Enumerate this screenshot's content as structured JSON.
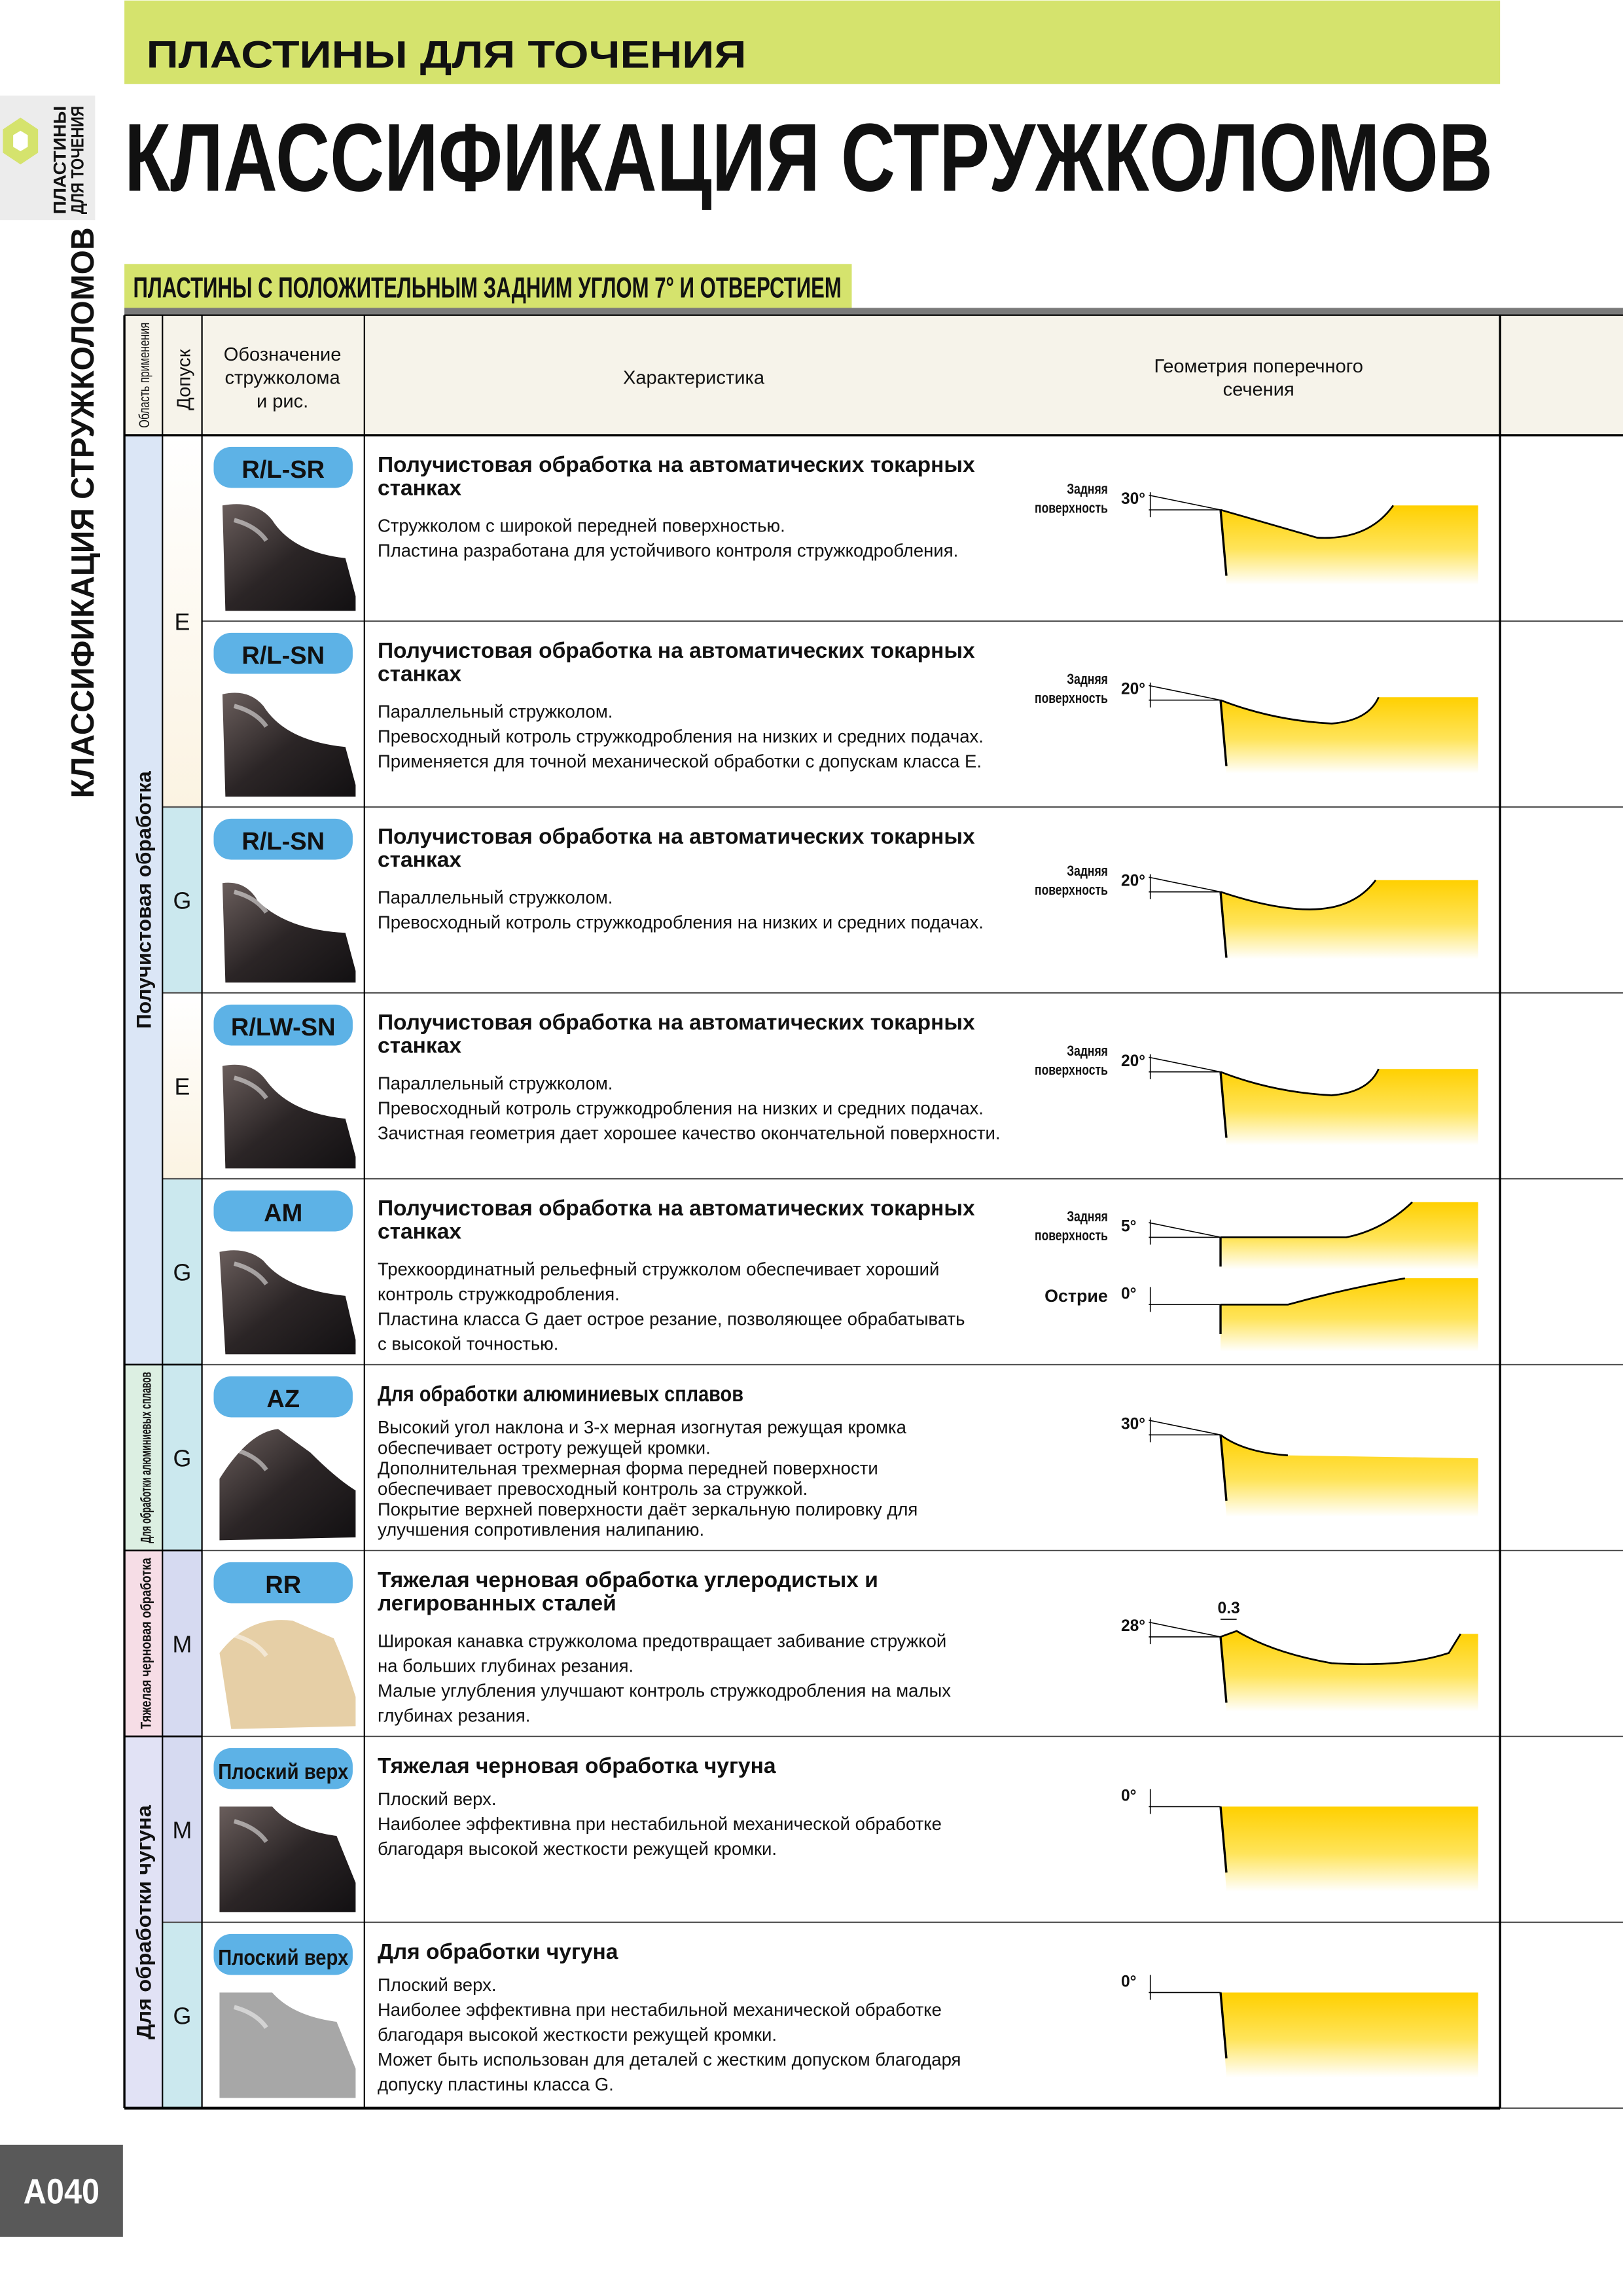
{
  "header": {
    "band": "ПЛАСТИНЫ ДЛЯ ТОЧЕНИЯ",
    "title": "КЛАССИФИКАЦИЯ СТРУЖКОЛОМОВ"
  },
  "side_tab": [
    "ПЛАСТИНЫ",
    "ДЛЯ ТОЧЕНИЯ"
  ],
  "side_title": "КЛАССИФИКАЦИЯ СТРУЖКОЛОМОВ",
  "section": "ПЛАСТИНЫ С ПОЛОЖИТЕЛЬНЫМ ЗАДНИМ УГЛОМ 7° И ОТВЕРСТИЕМ",
  "table": {
    "headers": {
      "area": "Область применения",
      "tolerance": "Допуск",
      "code": [
        "Обозначение",
        "стружколома",
        "и рис."
      ],
      "feature": "Характеристика",
      "geometry": [
        "Геометрия поперечного",
        "сечения"
      ]
    },
    "groups": [
      {
        "label": "Получистовая обработка",
        "tolerances": [
          {
            "label": "E",
            "rows": [
              {
                "code": "R/L-SR",
                "heading": [
                  "Получистовая обработка на автоматических токарных",
                  "станках"
                ],
                "lines": [
                  "Стружколом с широкой передней поверхностью.",
                  "Пластина разработана для устойчивого контроля стружкодробления."
                ],
                "geometry": [
                  {
                    "label": [
                      "Задняя",
                      "поверхность"
                    ],
                    "angle": "30°"
                  }
                ]
              },
              {
                "code": "R/L-SN",
                "heading": [
                  "Получистовая обработка на автоматических токарных",
                  "станках"
                ],
                "lines": [
                  "Параллельный стружколом.",
                  "Превосходный котроль стружкодробления на низких и средних подачах.",
                  "Применяется для точной механической обработки с допускам класса E."
                ],
                "geometry": [
                  {
                    "label": [
                      "Задняя",
                      "поверхность"
                    ],
                    "angle": "20°"
                  }
                ]
              }
            ]
          },
          {
            "label": "G",
            "rows": [
              {
                "code": "R/L-SN",
                "heading": [
                  "Получистовая обработка на автоматических токарных",
                  "станках"
                ],
                "lines": [
                  "Параллельный стружколом.",
                  "Превосходный котроль стружкодробления на низких и средних подачах."
                ],
                "geometry": [
                  {
                    "label": [
                      "Задняя",
                      "поверхность"
                    ],
                    "angle": "20°"
                  }
                ]
              }
            ]
          },
          {
            "label": "E",
            "rows": [
              {
                "code": "R/LW-SN",
                "heading": [
                  "Получистовая обработка на автоматических токарных",
                  "станках"
                ],
                "lines": [
                  "Параллельный стружколом.",
                  "Превосходный котроль стружкодробления на низких и средних подачах.",
                  "Зачистная геометрия дает хорошее качество окончательной поверхности."
                ],
                "geometry": [
                  {
                    "label": [
                      "Задняя",
                      "поверхность"
                    ],
                    "angle": "20°"
                  }
                ]
              }
            ]
          },
          {
            "label": "G",
            "rows": [
              {
                "code": "AM",
                "heading": [
                  "Получистовая обработка на автоматических токарных",
                  "станках"
                ],
                "lines": [
                  "Трехкоординатный рельефный стружколом обеспечивает хороший",
                  "контроль стружкодробления.",
                  "Пластина класса G дает острое резание, позволяющее обрабатывать",
                  "с высокой точностью."
                ],
                "geometry": [
                  {
                    "label": [
                      "Задняя",
                      "поверхность"
                    ],
                    "angle": "5°"
                  },
                  {
                    "label": [
                      "Острие"
                    ],
                    "angle": "0°"
                  }
                ]
              }
            ]
          }
        ]
      },
      {
        "label": "Для обработки алюминиевых сплавов",
        "tolerances": [
          {
            "label": "G",
            "rows": [
              {
                "code": "AZ",
                "heading": [
                  "Для обработки алюминиевых сплавов"
                ],
                "lines": [
                  "Высокий угол наклона и 3-х мерная изогнутая режущая кромка",
                  "обеспечивает остроту режущей кромки.",
                  "Дополнительная трехмерная форма передней поверхности",
                  "обеспечивает превосходный контроль за стружкой.",
                  "Покрытие верхней поверхности даёт зеркальную полировку для",
                  "улучшения сопротивления налипанию."
                ],
                "geometry": [
                  {
                    "angle": "30°"
                  }
                ]
              }
            ]
          }
        ]
      },
      {
        "label": "Тяжелая черновая обработка",
        "tolerances": [
          {
            "label": "M",
            "rows": [
              {
                "code": "RR",
                "heading": [
                  "Тяжелая черновая обработка углеродистых и",
                  "легированных сталей"
                ],
                "lines": [
                  "Широкая канавка стружколома предотвращает забивание стружкой",
                  "на больших глубинах резания.",
                  "Малые углубления улучшают контроль стружкодробления на малых",
                  "глубинах резания."
                ],
                "geometry": [
                  {
                    "angle": "28°",
                    "width": "0.3"
                  }
                ]
              }
            ]
          }
        ]
      },
      {
        "label": "Для обработки чугуна",
        "tolerances": [
          {
            "label": "M",
            "rows": [
              {
                "code": "Плоский верх",
                "heading": [
                  "Тяжелая черновая обработка чугуна"
                ],
                "lines": [
                  "Плоский верх.",
                  "Наиболее эффективна при нестабильной механической обработке",
                  "благодаря высокой жесткости режущей кромки."
                ],
                "geometry": [
                  {
                    "angle": "0°"
                  }
                ]
              }
            ]
          },
          {
            "label": "G",
            "rows": [
              {
                "code": "Плоский верх",
                "heading": [
                  "Для обработки чугуна"
                ],
                "lines": [
                  "Плоский верх.",
                  "Наиболее эффективна при нестабильной механической обработке",
                  "благодаря высокой жесткости режущей кромки.",
                  "Может быть использован для деталей с жестким допуском благодаря",
                  "допуску пластины класса G."
                ],
                "geometry": [
                  {
                    "angle": "0°"
                  }
                ]
              }
            ]
          }
        ]
      }
    ]
  },
  "page_number": "A040"
}
